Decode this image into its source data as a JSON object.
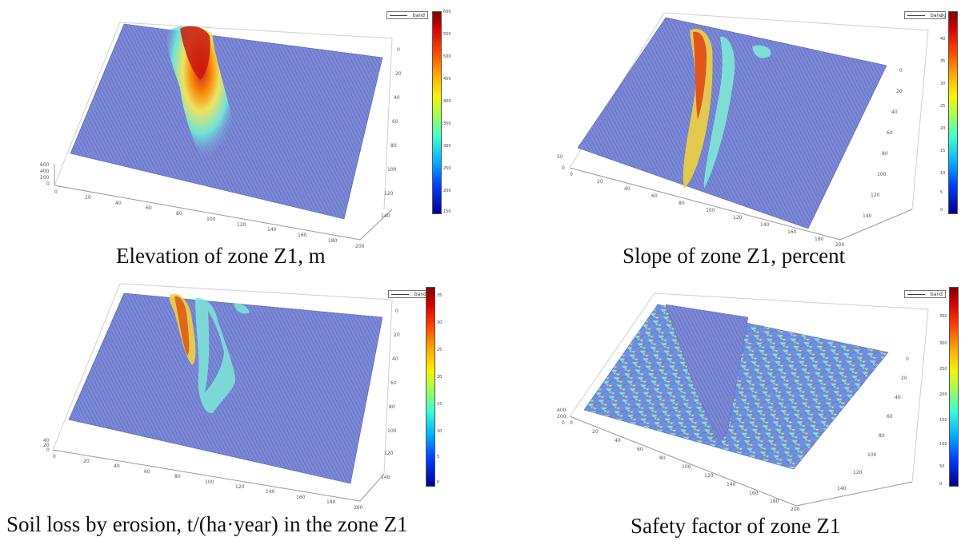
{
  "chart_data": [
    {
      "type": "surface",
      "title": "",
      "caption": "Elevation of zone Z1, m",
      "legend": "band",
      "colorbar_ticks": [
        "600",
        "550",
        "500",
        "450",
        "400",
        "350",
        "300",
        "250",
        "200",
        "150"
      ],
      "x_ticks": [
        "0",
        "20",
        "40",
        "60",
        "80",
        "100",
        "120",
        "140",
        "160",
        "180",
        "200"
      ],
      "y_ticks": [
        "0",
        "20",
        "40",
        "60",
        "80",
        "100",
        "120",
        "140"
      ],
      "z_ticks": [
        "600",
        "400",
        "200",
        "0"
      ],
      "colormap": "jet",
      "surface_color": "#6f7fd4"
    },
    {
      "type": "surface",
      "title": "",
      "caption": "Slope of zone Z1, percent",
      "legend": "band",
      "colorbar_ticks": [
        "45",
        "40",
        "35",
        "30",
        "25",
        "20",
        "15",
        "10",
        "5",
        "0"
      ],
      "x_ticks": [
        "0",
        "20",
        "40",
        "60",
        "80",
        "100",
        "120",
        "140",
        "160",
        "180",
        "200"
      ],
      "y_ticks": [
        "0",
        "20",
        "40",
        "60",
        "80",
        "100",
        "120",
        "140"
      ],
      "z_ticks": [
        "50",
        "0"
      ],
      "colormap": "jet",
      "surface_color": "#6f7fd4"
    },
    {
      "type": "surface",
      "title": "",
      "caption": "Soil loss by erosion, t/(ha·year) in the zone Z1",
      "legend": "band",
      "colorbar_ticks": [
        "35",
        "30",
        "25",
        "20",
        "15",
        "10",
        "5",
        "0"
      ],
      "x_ticks": [
        "0",
        "20",
        "40",
        "60",
        "80",
        "100",
        "120",
        "140",
        "160",
        "180",
        "200"
      ],
      "y_ticks": [
        "0",
        "20",
        "40",
        "60",
        "80",
        "100",
        "120",
        "140"
      ],
      "z_ticks": [
        "40",
        "20",
        "0"
      ],
      "colormap": "jet",
      "surface_color": "#6f7fd4"
    },
    {
      "type": "surface",
      "title": "",
      "caption": "Safety factor of zone Z1",
      "legend": "band",
      "colorbar_ticks": [
        "350",
        "300",
        "250",
        "200",
        "150",
        "100",
        "50",
        "0"
      ],
      "x_ticks": [
        "0",
        "20",
        "40",
        "60",
        "80",
        "100",
        "120",
        "140",
        "160",
        "180",
        "200"
      ],
      "y_ticks": [
        "0",
        "20",
        "40",
        "60",
        "80",
        "100",
        "120",
        "140"
      ],
      "z_ticks": [
        "400",
        "200",
        "0"
      ],
      "colormap": "jet",
      "surface_color": "#6f7fd4"
    }
  ]
}
